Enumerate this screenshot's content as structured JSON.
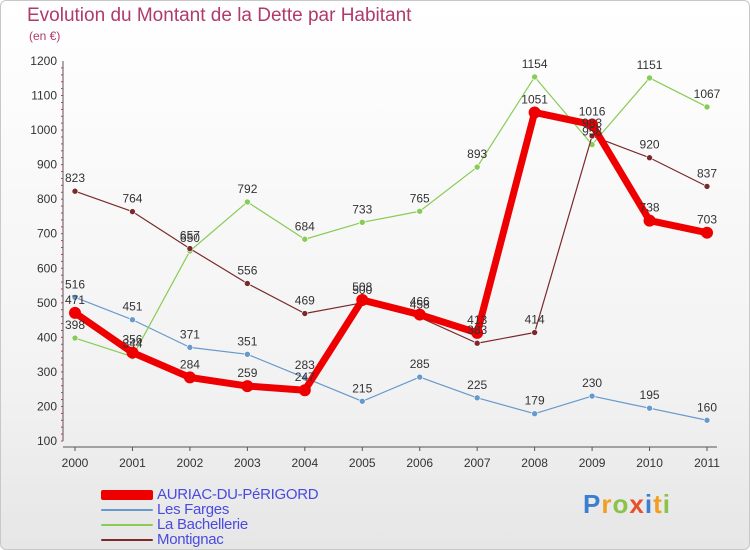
{
  "title": "Evolution du Montant de la Dette par Habitant",
  "subtitle": "(en €)",
  "logo": {
    "text": "Proxiti",
    "letters": [
      {
        "ch": "P",
        "color": "#3a7fd0"
      },
      {
        "ch": "r",
        "color": "#f0a020"
      },
      {
        "ch": "o",
        "color": "#8bc34a"
      },
      {
        "ch": "x",
        "color": "#e8502a"
      },
      {
        "ch": "i",
        "color": "#3a7fd0"
      },
      {
        "ch": "t",
        "color": "#f0a020"
      },
      {
        "ch": "i",
        "color": "#8bc34a"
      }
    ]
  },
  "chart_data": {
    "type": "line",
    "title": "Evolution du Montant de la Dette par Habitant",
    "subtitle": "(en €)",
    "x": [
      "2000",
      "2001",
      "2002",
      "2003",
      "2004",
      "2005",
      "2006",
      "2007",
      "2008",
      "2009",
      "2010",
      "2011"
    ],
    "ylim": [
      100,
      1200
    ],
    "yticks": [
      100,
      200,
      300,
      400,
      500,
      600,
      700,
      800,
      900,
      1000,
      1100,
      1200
    ],
    "grid": false,
    "legend_position": "bottom-left",
    "series": [
      {
        "name": "AURIAC-DU-PéRIGORD",
        "color": "#ee0000",
        "width": 7,
        "marker": 6,
        "values": [
          471,
          356,
          284,
          259,
          247,
          508,
          466,
          413,
          1051,
          1016,
          738,
          703
        ],
        "labels": [
          "471",
          "356",
          "284",
          "259",
          "247",
          "508",
          "466",
          "413",
          "1051",
          "1016",
          "738",
          "703"
        ]
      },
      {
        "name": "Les Farges",
        "color": "#6699cc",
        "width": 1.2,
        "marker": 3,
        "values": [
          516,
          451,
          371,
          351,
          283,
          215,
          285,
          225,
          179,
          230,
          195,
          160
        ],
        "labels": [
          "516",
          "451",
          "371",
          "351",
          "283",
          "215",
          "285",
          "225",
          "179",
          "230",
          "195",
          "160"
        ]
      },
      {
        "name": "La Bachellerie",
        "color": "#88cc55",
        "width": 1.2,
        "marker": 3,
        "values": [
          398,
          344,
          650,
          792,
          684,
          733,
          765,
          893,
          1154,
          958,
          1151,
          1067
        ],
        "labels": [
          "398",
          "344",
          "650",
          "792",
          "684",
          "733",
          "765",
          "893",
          "1154",
          "958",
          "1151",
          "1067"
        ]
      },
      {
        "name": "Montignac",
        "color": "#7a2a2a",
        "width": 1.2,
        "marker": 3,
        "values": [
          823,
          764,
          657,
          556,
          469,
          500,
          458,
          383,
          414,
          983,
          920,
          837
        ],
        "labels": [
          "823",
          "764",
          "657",
          "556",
          "469",
          "500",
          "458",
          "383",
          "414",
          "983",
          "920",
          "837"
        ]
      }
    ]
  }
}
